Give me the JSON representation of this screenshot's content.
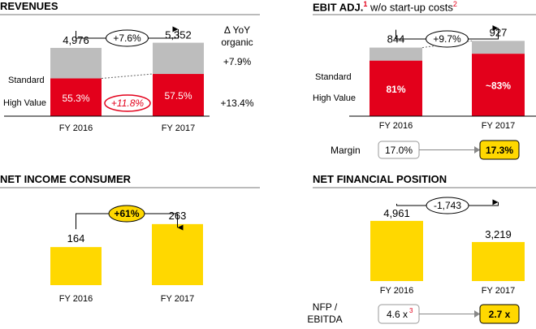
{
  "colors": {
    "red": "#e3001b",
    "grey": "#bdbdbd",
    "yellow": "#ffd800",
    "black": "#000000"
  },
  "revenues": {
    "title": "REVENUES",
    "growth_label": "+7.6%",
    "hv_growth_label": "+11.8%",
    "yoy_header_line1": "Δ YoY",
    "yoy_header_line2": "organic",
    "yoy_standard": "+7.9%",
    "yoy_high_value": "+13.4%",
    "row_label_standard": "Standard",
    "row_label_high_value": "High Value"
  },
  "ebit": {
    "title": "EBIT ADJ.",
    "title_sup": "1",
    "title_suffix": " w/o start-up costs",
    "title_suffix_sup": "2",
    "growth_label": "+9.7%",
    "row_label_standard": "Standard",
    "row_label_high_value": "High Value",
    "margin_label": "Margin",
    "margin_2016": "17.0%",
    "margin_2017": "17.3%"
  },
  "net_income": {
    "title": "NET INCOME CONSUMER",
    "growth_label": "+61%"
  },
  "nfp": {
    "title": "NET FINANCIAL POSITION",
    "change_label": "-1,743",
    "ratio_label_line1": "NFP /",
    "ratio_label_line2": "EBITDA",
    "ratio_2016": "4.6 x",
    "ratio_2016_sup": "3",
    "ratio_2017": "2.7 x"
  },
  "chart_data": [
    {
      "type": "bar",
      "title": "REVENUES",
      "categories": [
        "FY 2016",
        "FY 2017"
      ],
      "totals": [
        4976,
        5352
      ],
      "total_labels": [
        "4,976",
        "5,352"
      ],
      "series": [
        {
          "name": "High Value",
          "values": [
            2752,
            3077
          ],
          "labels": [
            "55.3%",
            "57.5%"
          ]
        },
        {
          "name": "Standard",
          "values": [
            2224,
            2275
          ]
        }
      ],
      "ylim": [
        0,
        7400
      ]
    },
    {
      "type": "bar",
      "title": "EBIT ADJ.",
      "categories": [
        "FY 2016",
        "FY 2017"
      ],
      "totals": [
        844,
        927
      ],
      "total_labels": [
        "844",
        "927"
      ],
      "series": [
        {
          "name": "High Value",
          "values": [
            684,
            769
          ],
          "labels": [
            "81%",
            "~83%"
          ]
        },
        {
          "name": "Standard",
          "values": [
            160,
            158
          ]
        }
      ],
      "ylim": [
        0,
        1250
      ]
    },
    {
      "type": "bar",
      "title": "NET INCOME CONSUMER",
      "categories": [
        "FY 2016",
        "FY 2017"
      ],
      "values": [
        164,
        263
      ],
      "labels": [
        "164",
        "263"
      ],
      "ylim": [
        0,
        420
      ]
    },
    {
      "type": "bar",
      "title": "NET FINANCIAL POSITION",
      "categories": [
        "FY 2016",
        "FY 2017"
      ],
      "values": [
        4961,
        3219
      ],
      "labels": [
        "4,961",
        "3,219"
      ],
      "ylim": [
        0,
        7700
      ]
    }
  ]
}
